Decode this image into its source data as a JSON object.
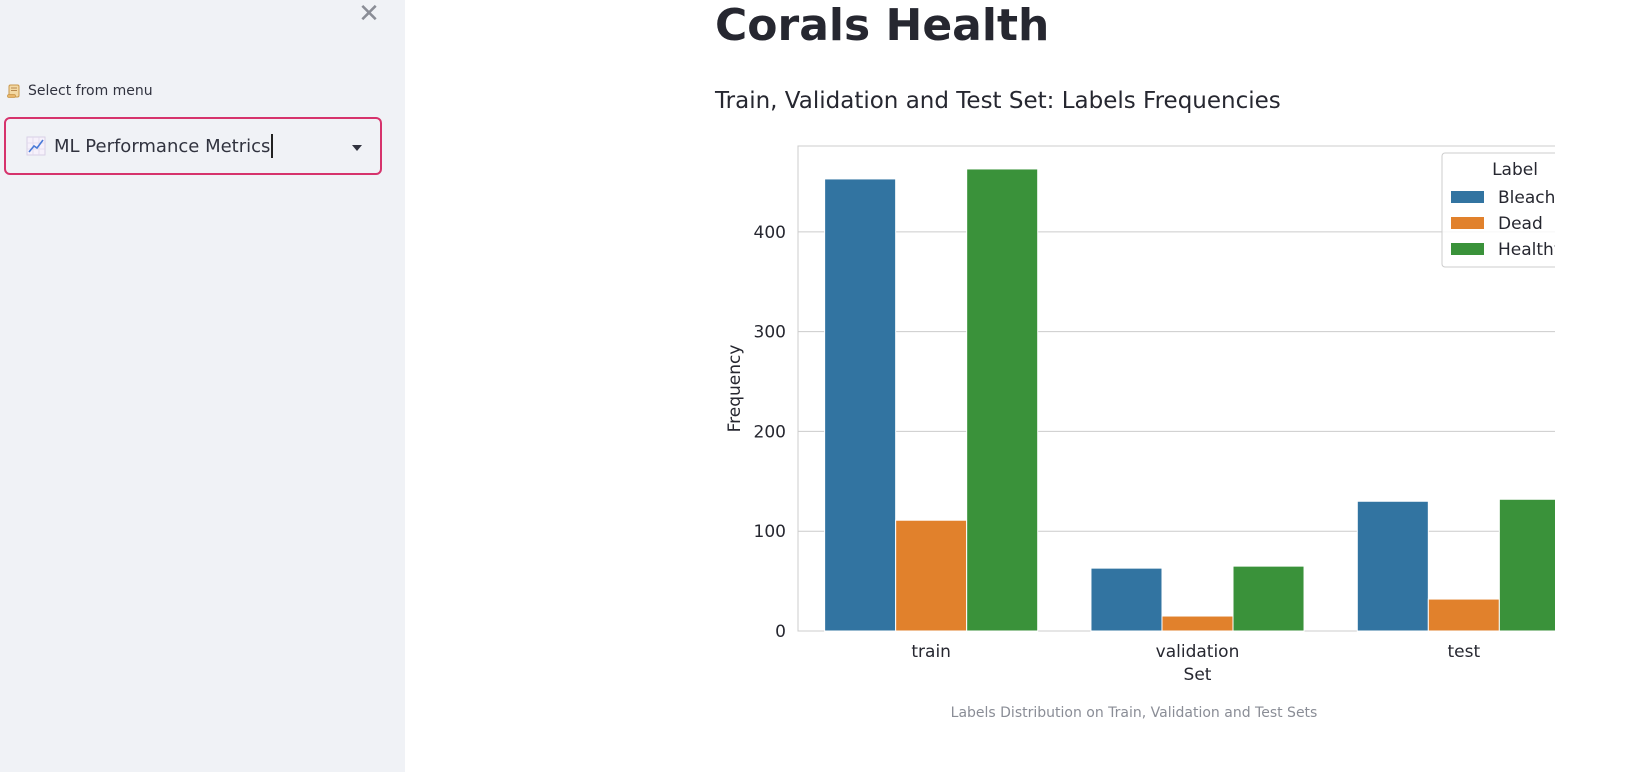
{
  "sidebar": {
    "close_symbol": "✕",
    "menu_label": "Select from menu",
    "menu_label_icon": "scroll-icon",
    "select": {
      "value": "ML Performance Metrics",
      "icon": "chart-increasing-icon",
      "border_color": "#d6336c"
    }
  },
  "main": {
    "title": "Corals Health",
    "subtitle": "Train, Validation and Test Set: Labels Frequencies",
    "caption": "Labels Distribution on Train, Validation and Test Sets"
  },
  "chart_data": {
    "type": "bar",
    "categories": [
      "train",
      "validation",
      "test"
    ],
    "series": [
      {
        "name": "Bleached",
        "values": [
          453,
          63,
          130
        ],
        "color": "#3274a1"
      },
      {
        "name": "Dead",
        "values": [
          111,
          15,
          32
        ],
        "color": "#e1812c"
      },
      {
        "name": "Healthy",
        "values": [
          463,
          65,
          132
        ],
        "color": "#3a923a"
      }
    ],
    "title": "",
    "xlabel": "Set",
    "ylabel": "Frequency",
    "ylim": [
      0,
      486
    ],
    "yticks": [
      0,
      100,
      200,
      300,
      400
    ],
    "grid": true,
    "legend": {
      "title": "Label",
      "placement": "top-right"
    }
  }
}
